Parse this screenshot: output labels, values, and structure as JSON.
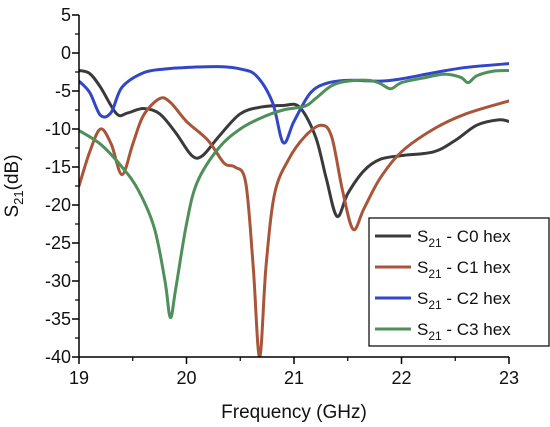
{
  "chart_data": {
    "type": "line",
    "title": "",
    "xlabel": "Frequency (GHz)",
    "ylabel": {
      "main": "S",
      "sub": "21",
      "suffix": "(dB)"
    },
    "xlim": [
      19,
      23
    ],
    "ylim": [
      -40,
      5
    ],
    "xticks": [
      19,
      20,
      21,
      22,
      23
    ],
    "yticks": [
      5,
      0,
      -5,
      -10,
      -15,
      -20,
      -25,
      -30,
      -35,
      -40
    ],
    "grid": false,
    "legend_position": "bottom-right",
    "series": [
      {
        "name": "S21 - C0 hex",
        "label_main": "S",
        "label_sub": "21",
        "label_rest": " - C0 hex",
        "color": "#3a3a3a",
        "points": [
          [
            19.0,
            -2.3
          ],
          [
            19.1,
            -2.7
          ],
          [
            19.2,
            -4.5
          ],
          [
            19.35,
            -8.0
          ],
          [
            19.45,
            -7.9
          ],
          [
            19.6,
            -7.3
          ],
          [
            19.75,
            -8.0
          ],
          [
            19.9,
            -10.5
          ],
          [
            20.05,
            -13.5
          ],
          [
            20.15,
            -13.5
          ],
          [
            20.3,
            -11.0
          ],
          [
            20.5,
            -8.0
          ],
          [
            20.7,
            -7.1
          ],
          [
            20.9,
            -6.9
          ],
          [
            21.05,
            -7.1
          ],
          [
            21.2,
            -11.0
          ],
          [
            21.3,
            -16.5
          ],
          [
            21.4,
            -21.5
          ],
          [
            21.5,
            -18.5
          ],
          [
            21.65,
            -15.5
          ],
          [
            21.8,
            -14.0
          ],
          [
            22.0,
            -13.5
          ],
          [
            22.3,
            -13.0
          ],
          [
            22.5,
            -11.5
          ],
          [
            22.7,
            -9.5
          ],
          [
            22.9,
            -8.8
          ],
          [
            23.0,
            -9.0
          ]
        ]
      },
      {
        "name": "S21 - C1 hex",
        "label_main": "S",
        "label_sub": "21",
        "label_rest": " - C1 hex",
        "color": "#a9553a",
        "points": [
          [
            19.0,
            -17.5
          ],
          [
            19.1,
            -13.0
          ],
          [
            19.2,
            -10.0
          ],
          [
            19.3,
            -12.0
          ],
          [
            19.4,
            -16.0
          ],
          [
            19.5,
            -12.0
          ],
          [
            19.6,
            -8.2
          ],
          [
            19.75,
            -6.0
          ],
          [
            19.85,
            -6.5
          ],
          [
            20.0,
            -9.0
          ],
          [
            20.2,
            -11.5
          ],
          [
            20.35,
            -14.5
          ],
          [
            20.45,
            -15.0
          ],
          [
            20.55,
            -17.0
          ],
          [
            20.62,
            -28.0
          ],
          [
            20.68,
            -40.0
          ],
          [
            20.74,
            -28.0
          ],
          [
            20.82,
            -18.5
          ],
          [
            20.95,
            -14.0
          ],
          [
            21.1,
            -11.0
          ],
          [
            21.25,
            -9.5
          ],
          [
            21.35,
            -11.0
          ],
          [
            21.45,
            -18.0
          ],
          [
            21.55,
            -23.2
          ],
          [
            21.65,
            -20.5
          ],
          [
            21.8,
            -16.5
          ],
          [
            22.0,
            -13.0
          ],
          [
            22.3,
            -10.0
          ],
          [
            22.6,
            -8.0
          ],
          [
            23.0,
            -6.3
          ]
        ]
      },
      {
        "name": "S21 - C2 hex",
        "label_main": "S",
        "label_sub": "21",
        "label_rest": " - C2 hex",
        "color": "#3247c8",
        "points": [
          [
            19.0,
            -3.7
          ],
          [
            19.1,
            -5.2
          ],
          [
            19.2,
            -8.2
          ],
          [
            19.3,
            -7.8
          ],
          [
            19.4,
            -4.5
          ],
          [
            19.6,
            -2.6
          ],
          [
            19.8,
            -2.1
          ],
          [
            20.0,
            -1.9
          ],
          [
            20.3,
            -1.8
          ],
          [
            20.5,
            -2.1
          ],
          [
            20.65,
            -3.0
          ],
          [
            20.8,
            -6.5
          ],
          [
            20.9,
            -11.8
          ],
          [
            21.0,
            -9.0
          ],
          [
            21.15,
            -5.3
          ],
          [
            21.3,
            -4.0
          ],
          [
            21.5,
            -3.6
          ],
          [
            21.8,
            -3.7
          ],
          [
            22.0,
            -3.4
          ],
          [
            22.3,
            -2.6
          ],
          [
            22.6,
            -1.9
          ],
          [
            23.0,
            -1.4
          ]
        ]
      },
      {
        "name": "S21 - C3 hex",
        "label_main": "S",
        "label_sub": "21",
        "label_rest": " - C3 hex",
        "color": "#4e8f5a",
        "points": [
          [
            19.0,
            -10.2
          ],
          [
            19.2,
            -12.0
          ],
          [
            19.4,
            -15.0
          ],
          [
            19.55,
            -18.0
          ],
          [
            19.7,
            -23.0
          ],
          [
            19.8,
            -30.0
          ],
          [
            19.85,
            -34.8
          ],
          [
            19.9,
            -31.0
          ],
          [
            20.0,
            -22.5
          ],
          [
            20.1,
            -17.0
          ],
          [
            20.3,
            -12.5
          ],
          [
            20.5,
            -10.0
          ],
          [
            20.7,
            -8.5
          ],
          [
            20.9,
            -7.5
          ],
          [
            21.1,
            -7.0
          ],
          [
            21.2,
            -6.0
          ],
          [
            21.35,
            -4.3
          ],
          [
            21.5,
            -3.7
          ],
          [
            21.7,
            -3.6
          ],
          [
            21.8,
            -4.0
          ],
          [
            21.9,
            -4.7
          ],
          [
            22.0,
            -3.9
          ],
          [
            22.2,
            -3.3
          ],
          [
            22.4,
            -2.8
          ],
          [
            22.55,
            -3.2
          ],
          [
            22.62,
            -3.9
          ],
          [
            22.7,
            -3.0
          ],
          [
            22.85,
            -2.4
          ],
          [
            23.0,
            -2.3
          ]
        ]
      }
    ]
  }
}
